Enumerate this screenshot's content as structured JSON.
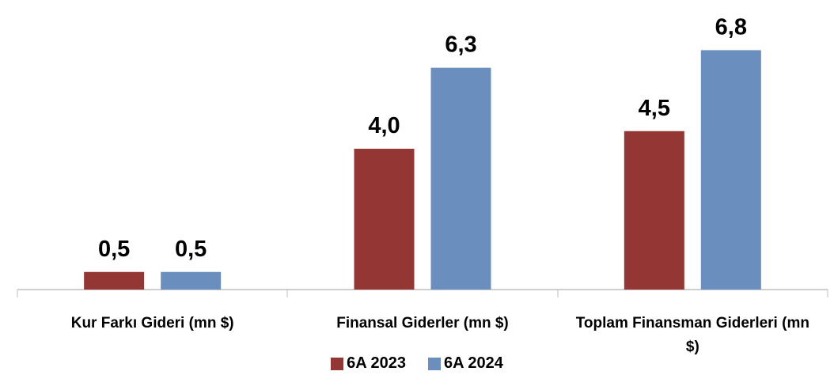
{
  "chart_data": {
    "type": "bar",
    "categories": [
      "Kur Farkı Gideri (mn $)",
      "Finansal Giderler (mn $)",
      "Toplam Finansman Giderleri (mn $)"
    ],
    "series": [
      {
        "name": "6A 2023",
        "color": "#943634",
        "values": [
          0.5,
          4.0,
          4.5
        ],
        "value_labels": [
          "0,5",
          "4,0",
          "4,5"
        ]
      },
      {
        "name": "6A 2024",
        "color": "#6a8fbf",
        "values": [
          0.5,
          6.3,
          6.8
        ],
        "value_labels": [
          "0,5",
          "6,3",
          "6,8"
        ]
      }
    ],
    "legend": "bottom"
  }
}
